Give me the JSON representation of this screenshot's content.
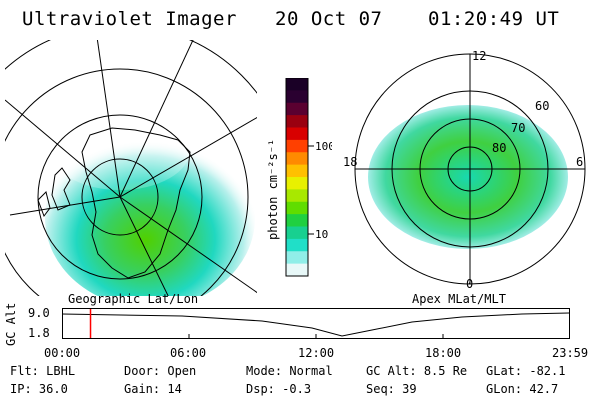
{
  "header": {
    "instrument": "Ultraviolet Imager",
    "date": "20 Oct 07",
    "time": "01:20:49 UT"
  },
  "left_panel": {
    "caption": "Geographic Lat/Lon"
  },
  "right_panel": {
    "caption": "Apex MLat/MLT",
    "mlt_labels": [
      "12",
      "18",
      "6",
      "0"
    ],
    "lat_labels": [
      "60",
      "70",
      "80"
    ]
  },
  "colorbar": {
    "unit_label": "photon cm⁻²s⁻¹",
    "ticks": [
      "100",
      "10"
    ],
    "colors": [
      "#1a0026",
      "#2a0030",
      "#5a0030",
      "#9a0010",
      "#d80000",
      "#ff4000",
      "#ff8a00",
      "#ffc000",
      "#e8f000",
      "#a8e800",
      "#60dd00",
      "#20d040",
      "#18d090",
      "#20dfc8",
      "#90eee8",
      "#e8f8f8"
    ]
  },
  "timeline": {
    "axis_label": "GC Alt",
    "y_ticks": [
      "9.0",
      "1.8"
    ],
    "x_ticks": [
      "00:00",
      "06:00",
      "12:00",
      "18:00",
      "23:59"
    ],
    "current_hour": 1.35,
    "marker_color": "#ff0000"
  },
  "info": {
    "row1": [
      {
        "key": "Flt:",
        "value": "LBHL"
      },
      {
        "key": "Door:",
        "value": "Open"
      },
      {
        "key": "Mode:",
        "value": "Normal"
      },
      {
        "key": "GC Alt:",
        "value": "8.5 Re"
      },
      {
        "key": "GLat:",
        "value": "-82.1"
      }
    ],
    "row2": [
      {
        "key": "IP:",
        "value": "36.0"
      },
      {
        "key": "Gain:",
        "value": "14"
      },
      {
        "key": "Dsp:",
        "value": "-0.3"
      },
      {
        "key": "Seq:",
        "value": "39"
      },
      {
        "key": "GLon:",
        "value": "42.7"
      }
    ]
  }
}
